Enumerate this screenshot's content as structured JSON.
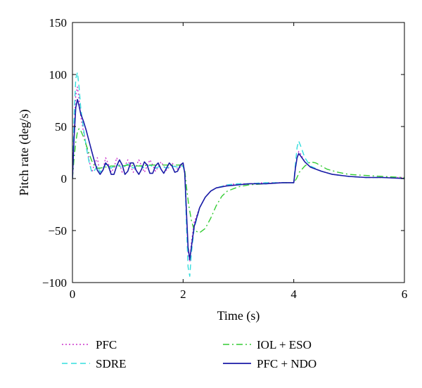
{
  "chart_data": {
    "type": "line",
    "title": "",
    "xlabel": "Time (s)",
    "ylabel": "Pitch rate (deg/s)",
    "xlim": [
      0,
      6
    ],
    "ylim": [
      -100,
      150
    ],
    "xticks": [
      0,
      2,
      4,
      6
    ],
    "yticks": [
      -100,
      -50,
      0,
      50,
      100,
      150
    ],
    "xtick_labels": [
      "0",
      "2",
      "4",
      "6"
    ],
    "ytick_labels": [
      "−100",
      "−50",
      "0",
      "50",
      "100",
      "150"
    ],
    "grid": false,
    "legend_placement": "below",
    "series": [
      {
        "name": "PFC",
        "color": "#cc33cc",
        "style": "dotted",
        "x": [
          0,
          0.03,
          0.06,
          0.09,
          0.12,
          0.15,
          0.2,
          0.25,
          0.3,
          0.35,
          0.4,
          0.45,
          0.5,
          0.55,
          0.6,
          0.65,
          0.7,
          0.75,
          0.8,
          0.85,
          0.9,
          0.95,
          1.0,
          1.05,
          1.1,
          1.15,
          1.2,
          1.25,
          1.3,
          1.35,
          1.4,
          1.45,
          1.5,
          1.55,
          1.6,
          1.65,
          1.7,
          1.75,
          1.8,
          1.85,
          1.9,
          1.95,
          2.0,
          2.03,
          2.06,
          2.09,
          2.12,
          2.15,
          2.2,
          2.3,
          2.4,
          2.5,
          2.6,
          2.8,
          3.0,
          3.2,
          3.5,
          3.8,
          4.0,
          4.03,
          4.06,
          4.09,
          4.12,
          4.2,
          4.3,
          4.5,
          4.7,
          5.0,
          5.3,
          5.6,
          6.0
        ],
        "y": [
          0,
          45,
          80,
          88,
          76,
          60,
          45,
          32,
          18,
          6,
          14,
          20,
          4,
          8,
          20,
          14,
          6,
          10,
          20,
          14,
          6,
          12,
          18,
          12,
          6,
          12,
          18,
          12,
          6,
          12,
          18,
          13,
          7,
          11,
          16,
          12,
          8,
          11,
          15,
          12,
          9,
          11,
          13,
          5,
          -35,
          -70,
          -80,
          -62,
          -42,
          -28,
          -18,
          -12,
          -9,
          -6,
          -5,
          -5,
          -4,
          -4,
          -4,
          10,
          20,
          26,
          24,
          16,
          11,
          7,
          4,
          2,
          1,
          1,
          1
        ]
      },
      {
        "name": "SDRE",
        "color": "#33dddd",
        "style": "dashed",
        "x": [
          0,
          0.03,
          0.06,
          0.09,
          0.12,
          0.15,
          0.2,
          0.25,
          0.3,
          0.35,
          0.4,
          0.45,
          0.5,
          0.6,
          0.7,
          0.8,
          0.9,
          1.0,
          1.1,
          1.2,
          1.3,
          1.4,
          1.5,
          1.6,
          1.7,
          1.8,
          1.9,
          2.0,
          2.03,
          2.06,
          2.09,
          2.12,
          2.15,
          2.2,
          2.3,
          2.4,
          2.5,
          2.6,
          2.8,
          3.0,
          3.2,
          3.5,
          3.8,
          4.0,
          4.03,
          4.06,
          4.09,
          4.12,
          4.2,
          4.3,
          4.5,
          4.7,
          5.0,
          5.3,
          5.6,
          6.0
        ],
        "y": [
          0,
          60,
          96,
          102,
          88,
          68,
          48,
          30,
          16,
          6,
          8,
          12,
          6,
          14,
          10,
          14,
          10,
          14,
          10,
          13,
          10,
          13,
          10,
          12,
          10,
          12,
          11,
          12,
          5,
          -45,
          -85,
          -94,
          -72,
          -48,
          -28,
          -18,
          -12,
          -9,
          -6,
          -5,
          -5,
          -4,
          -4,
          -4,
          14,
          30,
          36,
          32,
          20,
          12,
          7,
          4,
          2,
          1,
          1,
          0
        ]
      },
      {
        "name": "IOL + ESO",
        "color": "#33cc33",
        "style": "dashdot",
        "x": [
          0,
          0.03,
          0.06,
          0.09,
          0.12,
          0.15,
          0.2,
          0.25,
          0.3,
          0.35,
          0.4,
          0.45,
          0.5,
          0.6,
          0.7,
          0.8,
          0.9,
          1.0,
          1.2,
          1.4,
          1.6,
          1.8,
          2.0,
          2.03,
          2.06,
          2.1,
          2.15,
          2.2,
          2.3,
          2.4,
          2.5,
          2.6,
          2.7,
          2.8,
          3.0,
          3.2,
          3.5,
          3.8,
          4.0,
          4.05,
          4.1,
          4.2,
          4.3,
          4.4,
          4.5,
          4.6,
          4.8,
          5.0,
          5.3,
          5.6,
          6.0
        ],
        "y": [
          0,
          20,
          35,
          45,
          48,
          46,
          40,
          32,
          24,
          17,
          12,
          10,
          10,
          11,
          12,
          12,
          12,
          13,
          12,
          13,
          13,
          13,
          13,
          8,
          -8,
          -25,
          -40,
          -50,
          -52,
          -48,
          -38,
          -26,
          -17,
          -12,
          -8,
          -6,
          -5,
          -4,
          -4,
          0,
          6,
          12,
          16,
          15,
          12,
          9,
          6,
          4,
          3,
          2,
          1
        ]
      },
      {
        "name": "PFC + NDO",
        "color": "#1a1aa6",
        "style": "solid",
        "x": [
          0,
          0.03,
          0.06,
          0.09,
          0.12,
          0.15,
          0.2,
          0.25,
          0.3,
          0.35,
          0.4,
          0.45,
          0.5,
          0.55,
          0.6,
          0.65,
          0.7,
          0.75,
          0.8,
          0.85,
          0.9,
          0.95,
          1.0,
          1.05,
          1.1,
          1.15,
          1.2,
          1.25,
          1.3,
          1.35,
          1.4,
          1.45,
          1.5,
          1.55,
          1.6,
          1.65,
          1.7,
          1.75,
          1.8,
          1.85,
          1.9,
          1.95,
          2.0,
          2.03,
          2.06,
          2.09,
          2.12,
          2.15,
          2.2,
          2.3,
          2.4,
          2.5,
          2.6,
          2.8,
          3.0,
          3.2,
          3.5,
          3.8,
          4.0,
          4.03,
          4.06,
          4.09,
          4.12,
          4.2,
          4.3,
          4.5,
          4.7,
          5.0,
          5.3,
          5.6,
          6.0
        ],
        "y": [
          0,
          40,
          68,
          76,
          70,
          62,
          55,
          46,
          36,
          26,
          16,
          8,
          4,
          8,
          15,
          12,
          4,
          4,
          12,
          18,
          13,
          4,
          7,
          15,
          15,
          8,
          4,
          9,
          16,
          13,
          5,
          5,
          12,
          15,
          9,
          5,
          10,
          15,
          12,
          6,
          7,
          13,
          15,
          5,
          -32,
          -66,
          -78,
          -66,
          -46,
          -28,
          -18,
          -12,
          -9,
          -7,
          -6,
          -5,
          -5,
          -4,
          -4,
          10,
          20,
          24,
          22,
          16,
          11,
          7,
          4,
          2,
          1,
          1,
          0
        ]
      }
    ]
  }
}
